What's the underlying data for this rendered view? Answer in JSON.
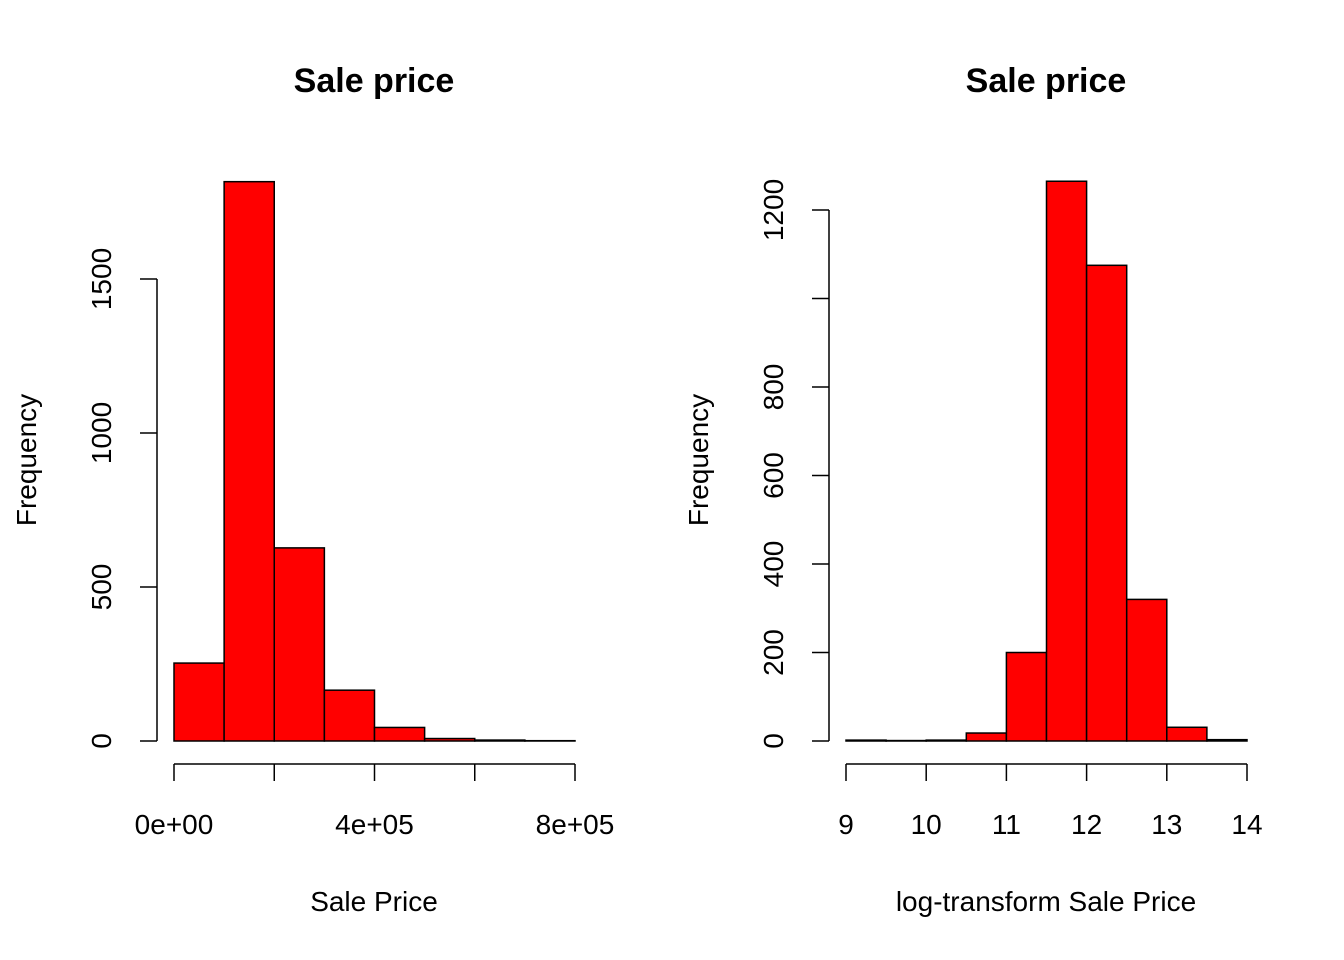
{
  "chart_data": [
    {
      "type": "bar",
      "title": "Sale price",
      "xlabel": "Sale Price",
      "ylabel": "Frequency",
      "bar_color": "#ff0000",
      "bin_edges": [
        0,
        100000,
        200000,
        300000,
        400000,
        500000,
        600000,
        700000,
        800000
      ],
      "values": [
        253,
        1816,
        627,
        165,
        44,
        8,
        3,
        1
      ],
      "xlim": [
        0,
        800000
      ],
      "ylim": [
        0,
        1820
      ],
      "x_ticks": [
        {
          "value": 0,
          "label": "0e+00"
        },
        {
          "value": 200000,
          "label": ""
        },
        {
          "value": 400000,
          "label": "4e+05"
        },
        {
          "value": 600000,
          "label": ""
        },
        {
          "value": 800000,
          "label": "8e+05"
        }
      ],
      "y_ticks": [
        {
          "value": 0,
          "label": "0"
        },
        {
          "value": 500,
          "label": "500"
        },
        {
          "value": 1000,
          "label": "1000"
        },
        {
          "value": 1500,
          "label": "1500"
        }
      ],
      "grid": false,
      "legend": "none"
    },
    {
      "type": "bar",
      "title": "Sale price",
      "xlabel": "log-transform Sale Price",
      "ylabel": "Frequency",
      "bar_color": "#ff0000",
      "bin_edges": [
        9,
        9.5,
        10,
        10.5,
        11,
        11.5,
        12,
        12.5,
        13,
        13.5,
        14
      ],
      "values": [
        2,
        1,
        2,
        18,
        200,
        1265,
        1075,
        320,
        31,
        3
      ],
      "xlim": [
        9,
        14
      ],
      "ylim": [
        0,
        1270
      ],
      "x_ticks": [
        {
          "value": 9,
          "label": "9"
        },
        {
          "value": 10,
          "label": "10"
        },
        {
          "value": 11,
          "label": "11"
        },
        {
          "value": 12,
          "label": "12"
        },
        {
          "value": 13,
          "label": "13"
        },
        {
          "value": 14,
          "label": "14"
        }
      ],
      "y_ticks": [
        {
          "value": 0,
          "label": "0"
        },
        {
          "value": 200,
          "label": "200"
        },
        {
          "value": 400,
          "label": "400"
        },
        {
          "value": 600,
          "label": "600"
        },
        {
          "value": 800,
          "label": "800"
        },
        {
          "value": 1000,
          "label": ""
        },
        {
          "value": 1200,
          "label": "1200"
        }
      ],
      "grid": false,
      "legend": "none"
    }
  ]
}
